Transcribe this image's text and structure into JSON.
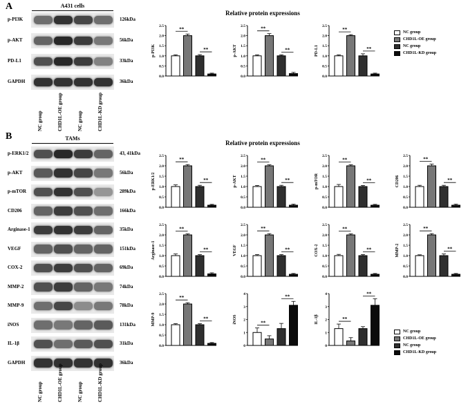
{
  "panel_a": {
    "letter": "A",
    "cells_label": "A431 cells",
    "section_title": "Relative protein expressions",
    "blots": [
      {
        "label": "p-PI3K",
        "kda": "126kDa",
        "intensity": [
          0.55,
          0.85,
          0.75,
          0.55
        ]
      },
      {
        "label": "p-AKT",
        "kda": "56kDa",
        "intensity": [
          0.6,
          0.9,
          0.8,
          0.5
        ]
      },
      {
        "label": "PD-L1",
        "kda": "33kDa",
        "intensity": [
          0.7,
          0.9,
          0.8,
          0.45
        ]
      },
      {
        "label": "GAPDH",
        "kda": "36kDa",
        "intensity": [
          0.85,
          0.85,
          0.85,
          0.85
        ]
      }
    ],
    "groups": [
      "NC group",
      "CHD1L-OE group",
      "NC group",
      "CHD1L-KD group"
    ],
    "legend": [
      "NC group",
      "CHD1L-OE group",
      "NC group",
      "CHD1L-KD group"
    ]
  },
  "panel_b": {
    "letter": "B",
    "cells_label": "TAMs",
    "section_title": "Relative protein expressions",
    "blots": [
      {
        "label": "p-ERK1/2",
        "kda": "43, 41kDa",
        "intensity": [
          0.7,
          0.9,
          0.8,
          0.6
        ]
      },
      {
        "label": "p-AKT",
        "kda": "56kDa",
        "intensity": [
          0.65,
          0.85,
          0.75,
          0.5
        ]
      },
      {
        "label": "p-mTOR",
        "kda": "289kDa",
        "intensity": [
          0.7,
          0.85,
          0.7,
          0.35
        ]
      },
      {
        "label": "CD206",
        "kda": "166kDa",
        "intensity": [
          0.6,
          0.8,
          0.7,
          0.55
        ]
      },
      {
        "label": "Arginase-1",
        "kda": "35kDa",
        "intensity": [
          0.8,
          0.85,
          0.8,
          0.6
        ]
      },
      {
        "label": "VEGF",
        "kda": "151kDa",
        "intensity": [
          0.6,
          0.7,
          0.6,
          0.6
        ]
      },
      {
        "label": "COX-2",
        "kda": "69kDa",
        "intensity": [
          0.7,
          0.8,
          0.7,
          0.6
        ]
      },
      {
        "label": "MMP-2",
        "kda": "74kDa",
        "intensity": [
          0.7,
          0.8,
          0.6,
          0.5
        ]
      },
      {
        "label": "MMP-9",
        "kda": "78kDa",
        "intensity": [
          0.55,
          0.75,
          0.4,
          0.5
        ]
      },
      {
        "label": "iNOS",
        "kda": "131kDa",
        "intensity": [
          0.55,
          0.5,
          0.6,
          0.65
        ]
      },
      {
        "label": "IL-1β",
        "kda": "31kDa",
        "intensity": [
          0.7,
          0.55,
          0.65,
          0.7
        ]
      },
      {
        "label": "GAPDH",
        "kda": "36kDa",
        "intensity": [
          0.85,
          0.85,
          0.85,
          0.85
        ]
      }
    ],
    "groups": [
      "NC group",
      "CHD1L-OE group",
      "NC group",
      "CHD1L-KD group"
    ],
    "legend": [
      "NC group",
      "CHD1L-OE group",
      "NC group",
      "CHD1L-KD group"
    ]
  },
  "bar_colors": [
    "#ffffff",
    "#777777",
    "#2f2f2f",
    "#0b0b0b"
  ],
  "sig_label": "**",
  "chart_data": [
    {
      "type": "bar",
      "ylabel": "p-PI3K",
      "ylim": [
        0,
        2.5
      ],
      "yticks": [
        "0.0",
        "0.5",
        "1.0",
        "1.5",
        "2.0",
        "2.5"
      ],
      "values": [
        1.0,
        2.0,
        1.0,
        0.1
      ],
      "errors": [
        0.05,
        0.08,
        0.06,
        0.04
      ]
    },
    {
      "type": "bar",
      "ylabel": "p-AKT",
      "ylim": [
        0,
        2.5
      ],
      "yticks": [
        "0.0",
        "0.5",
        "1.0",
        "1.5",
        "2.0",
        "2.5"
      ],
      "values": [
        1.0,
        2.0,
        1.0,
        0.12
      ],
      "errors": [
        0.05,
        0.1,
        0.05,
        0.06
      ]
    },
    {
      "type": "bar",
      "ylabel": "PD-L1",
      "ylim": [
        0,
        2.5
      ],
      "yticks": [
        "0.0",
        "0.5",
        "1.0",
        "1.5",
        "2.0",
        "2.5"
      ],
      "values": [
        1.0,
        2.0,
        1.0,
        0.1
      ],
      "errors": [
        0.05,
        0.05,
        0.1,
        0.04
      ]
    },
    {
      "type": "bar",
      "ylabel": "p-ERK1/2",
      "ylim": [
        0,
        2.5
      ],
      "yticks": [
        "0.0",
        "0.5",
        "1.0",
        "1.5",
        "2.0",
        "2.5"
      ],
      "values": [
        1.0,
        2.0,
        1.0,
        0.1
      ],
      "errors": [
        0.08,
        0.06,
        0.06,
        0.04
      ]
    },
    {
      "type": "bar",
      "ylabel": "p-AKT",
      "ylim": [
        0,
        2.5
      ],
      "yticks": [
        "0.0",
        "0.5",
        "1.0",
        "1.5",
        "2.0",
        "2.5"
      ],
      "values": [
        1.0,
        2.0,
        1.0,
        0.1
      ],
      "errors": [
        0.05,
        0.05,
        0.06,
        0.05
      ]
    },
    {
      "type": "bar",
      "ylabel": "p-mTOR",
      "ylim": [
        0,
        2.5
      ],
      "yticks": [
        "0.0",
        "0.5",
        "1.0",
        "1.5",
        "2.0",
        "2.5"
      ],
      "values": [
        1.0,
        2.0,
        1.0,
        0.1
      ],
      "errors": [
        0.1,
        0.05,
        0.05,
        0.04
      ]
    },
    {
      "type": "bar",
      "ylabel": "CD206",
      "ylim": [
        0,
        2.5
      ],
      "yticks": [
        "0.0",
        "0.5",
        "1.0",
        "1.5",
        "2.0",
        "2.5"
      ],
      "values": [
        1.0,
        2.0,
        1.0,
        0.1
      ],
      "errors": [
        0.06,
        0.08,
        0.06,
        0.05
      ]
    },
    {
      "type": "bar",
      "ylabel": "Arginase-1",
      "ylim": [
        0,
        2.5
      ],
      "yticks": [
        "0.0",
        "0.5",
        "1.0",
        "1.5",
        "2.0",
        "2.5"
      ],
      "values": [
        1.0,
        2.0,
        1.0,
        0.12
      ],
      "errors": [
        0.08,
        0.05,
        0.05,
        0.05
      ]
    },
    {
      "type": "bar",
      "ylabel": "VEGF",
      "ylim": [
        0,
        2.5
      ],
      "yticks": [
        "0.0",
        "0.5",
        "1.0",
        "1.5",
        "2.0",
        "2.5"
      ],
      "values": [
        1.0,
        2.0,
        1.0,
        0.1
      ],
      "errors": [
        0.05,
        0.06,
        0.05,
        0.04
      ]
    },
    {
      "type": "bar",
      "ylabel": "COX-2",
      "ylim": [
        0,
        2.5
      ],
      "yticks": [
        "0.0",
        "0.5",
        "1.0",
        "1.5",
        "2.0",
        "2.5"
      ],
      "values": [
        1.0,
        2.0,
        1.0,
        0.1
      ],
      "errors": [
        0.06,
        0.05,
        0.05,
        0.04
      ]
    },
    {
      "type": "bar",
      "ylabel": "MMP-2",
      "ylim": [
        0,
        2.5
      ],
      "yticks": [
        "0.0",
        "0.5",
        "1.0",
        "1.5",
        "2.0",
        "2.5"
      ],
      "values": [
        1.0,
        2.0,
        1.0,
        0.1
      ],
      "errors": [
        0.04,
        0.06,
        0.08,
        0.04
      ]
    },
    {
      "type": "bar",
      "ylabel": "MMP-9",
      "ylim": [
        0,
        2.5
      ],
      "yticks": [
        "0.0",
        "0.5",
        "1.0",
        "1.5",
        "2.0",
        "2.5"
      ],
      "values": [
        1.0,
        2.0,
        1.0,
        0.1
      ],
      "errors": [
        0.05,
        0.06,
        0.05,
        0.04
      ]
    },
    {
      "type": "bar",
      "ylabel": "iNOS",
      "ylim": [
        0,
        4
      ],
      "yticks": [
        "0",
        "1",
        "2",
        "3",
        "4"
      ],
      "values": [
        1.0,
        0.5,
        1.3,
        3.1
      ],
      "errors": [
        0.35,
        0.25,
        0.4,
        0.3
      ]
    },
    {
      "type": "bar",
      "ylabel": "IL-1β",
      "ylim": [
        0,
        4
      ],
      "yticks": [
        "0",
        "1",
        "2",
        "3",
        "4"
      ],
      "values": [
        1.3,
        0.35,
        1.3,
        3.1
      ],
      "errors": [
        0.35,
        0.25,
        0.15,
        0.5
      ]
    }
  ]
}
